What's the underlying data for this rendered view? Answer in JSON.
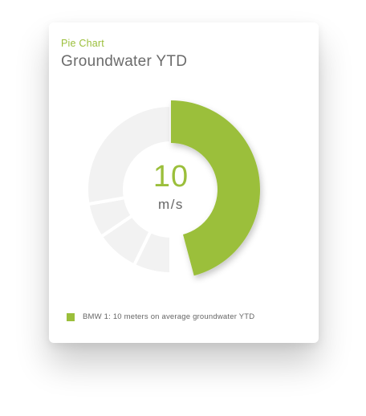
{
  "card": {
    "subtitle": "Pie Chart",
    "title": "Groundwater YTD"
  },
  "center": {
    "value": "10",
    "unit": "m/s"
  },
  "colors": {
    "accent": "#9bbf3b",
    "muted_segment": "#f2f2f2",
    "separator": "#ffffff"
  },
  "chart_data": {
    "type": "pie",
    "subtype": "donut",
    "title": "Groundwater YTD",
    "series": [
      {
        "name": "BMW 1: 10 meters on average groundwater YTD",
        "value": 10,
        "highlighted": true
      }
    ],
    "background_segments": 4,
    "legend": {
      "placement": "bottom-left",
      "entries": [
        "BMW 1: 10 meters on average groundwater YTD"
      ]
    }
  }
}
